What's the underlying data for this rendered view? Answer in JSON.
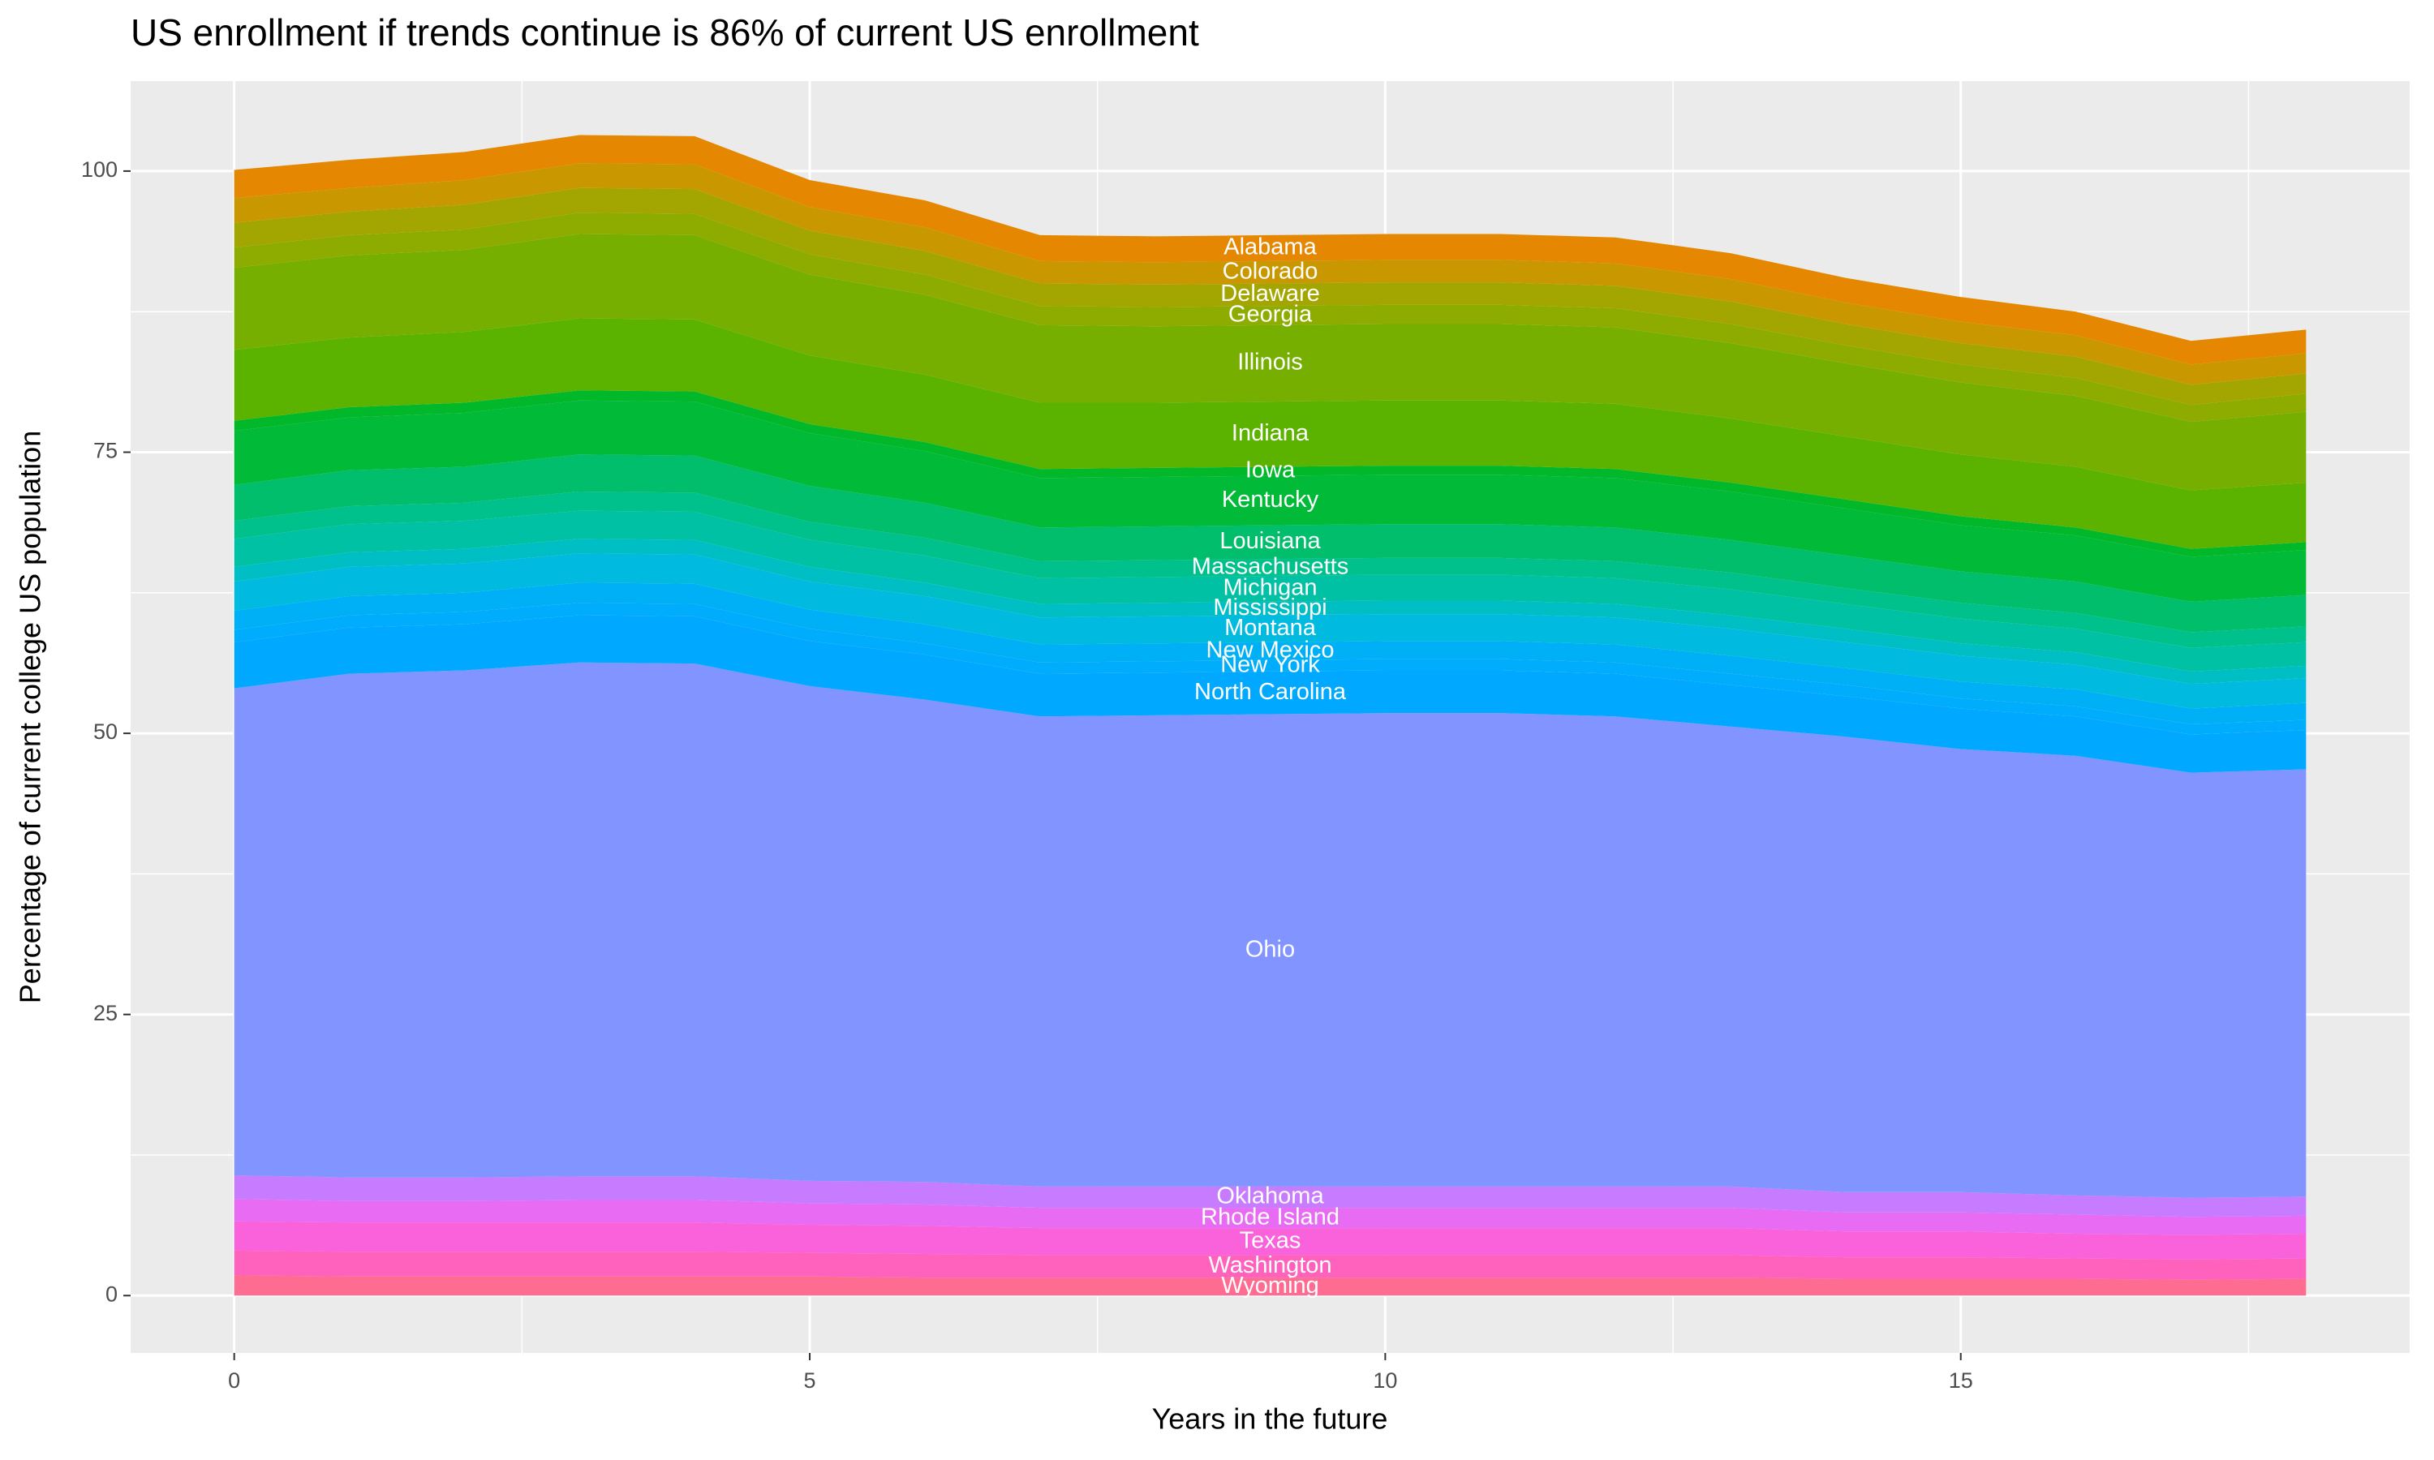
{
  "chart_data": {
    "type": "stacked_area",
    "title": "US enrollment if trends continue is 86% of current US enrollment",
    "x_label": "Years in the future",
    "y_label": "Percentage of current college US population",
    "x": [
      0,
      1,
      2,
      3,
      4,
      5,
      6,
      7,
      8,
      9,
      10,
      11,
      12,
      13,
      14,
      15,
      16,
      17,
      18
    ],
    "xlim": [
      -0.9,
      18.9
    ],
    "xticks": [
      0,
      5,
      10,
      15
    ],
    "minor_xticks": [
      2.5,
      7.5,
      12.5,
      17.5
    ],
    "ylim": [
      -5.1,
      108
    ],
    "yticks": [
      0,
      25,
      50,
      75,
      100
    ],
    "minor_yticks": [
      12.5,
      37.5,
      62.5,
      87.5
    ],
    "grid": true,
    "series": [
      {
        "name": "Alabama",
        "color": "#E58700",
        "values": [
          2.5,
          2.5,
          2.5,
          2.5,
          2.5,
          2.4,
          2.4,
          2.3,
          2.3,
          2.3,
          2.3,
          2.3,
          2.3,
          2.3,
          2.2,
          2.2,
          2.1,
          2.1,
          2.1
        ]
      },
      {
        "name": "Colorado",
        "color": "#C99800",
        "values": [
          2.2,
          2.1,
          2.2,
          2.2,
          2.2,
          2.1,
          2.1,
          2.0,
          2.0,
          2.0,
          2.0,
          2.0,
          2.0,
          2.0,
          1.9,
          1.9,
          1.9,
          1.8,
          1.8
        ]
      },
      {
        "name": "Delaware",
        "color": "#A3A500",
        "values": [
          2.2,
          2.1,
          2.2,
          2.2,
          2.2,
          2.1,
          2.1,
          2.0,
          2.0,
          2.0,
          2.0,
          2.0,
          2.0,
          2.0,
          1.9,
          1.9,
          1.9,
          1.8,
          1.8
        ]
      },
      {
        "name": "Georgia",
        "color": "#8EAB00",
        "values": [
          1.8,
          1.8,
          1.8,
          1.9,
          1.9,
          1.8,
          1.8,
          1.7,
          1.7,
          1.7,
          1.7,
          1.7,
          1.7,
          1.7,
          1.6,
          1.6,
          1.6,
          1.5,
          1.6
        ]
      },
      {
        "name": "Illinois",
        "color": "#76AF00",
        "values": [
          7.3,
          7.3,
          7.3,
          7.5,
          7.5,
          7.2,
          7.1,
          6.9,
          6.8,
          6.8,
          6.8,
          6.8,
          6.8,
          6.7,
          6.5,
          6.4,
          6.3,
          6.1,
          6.3
        ]
      },
      {
        "name": "Indiana",
        "color": "#5BB300",
        "values": [
          6.3,
          6.2,
          6.3,
          6.4,
          6.4,
          6.1,
          6.0,
          5.9,
          5.8,
          5.8,
          5.8,
          5.8,
          5.8,
          5.7,
          5.6,
          5.5,
          5.4,
          5.2,
          5.3
        ]
      },
      {
        "name": "Iowa",
        "color": "#00B82A",
        "values": [
          0.9,
          0.9,
          0.9,
          0.9,
          0.9,
          0.8,
          0.8,
          0.8,
          0.8,
          0.8,
          0.8,
          0.8,
          0.8,
          0.8,
          0.8,
          0.8,
          0.7,
          0.7,
          0.7
        ]
      },
      {
        "name": "Kentucky",
        "color": "#00BA38",
        "values": [
          4.8,
          4.7,
          4.8,
          4.8,
          4.8,
          4.7,
          4.6,
          4.4,
          4.4,
          4.4,
          4.4,
          4.4,
          4.4,
          4.3,
          4.2,
          4.1,
          4.1,
          4.0,
          4.0
        ]
      },
      {
        "name": "Louisiana",
        "color": "#00BE6C",
        "values": [
          3.2,
          3.2,
          3.2,
          3.3,
          3.3,
          3.2,
          3.1,
          3.0,
          3.0,
          3.0,
          3.0,
          3.0,
          3.0,
          2.9,
          2.9,
          2.8,
          2.8,
          2.7,
          2.8
        ]
      },
      {
        "name": "Massachusetts",
        "color": "#00C08B",
        "values": [
          1.6,
          1.6,
          1.6,
          1.7,
          1.7,
          1.6,
          1.6,
          1.5,
          1.5,
          1.5,
          1.5,
          1.5,
          1.5,
          1.5,
          1.4,
          1.4,
          1.4,
          1.4,
          1.4
        ]
      },
      {
        "name": "Michigan",
        "color": "#00C1A3",
        "values": [
          2.5,
          2.5,
          2.5,
          2.5,
          2.5,
          2.4,
          2.4,
          2.3,
          2.3,
          2.3,
          2.3,
          2.3,
          2.3,
          2.3,
          2.2,
          2.2,
          2.1,
          2.1,
          2.1
        ]
      },
      {
        "name": "Mississippi",
        "color": "#00BFC4",
        "values": [
          1.3,
          1.3,
          1.3,
          1.3,
          1.3,
          1.3,
          1.2,
          1.2,
          1.2,
          1.2,
          1.2,
          1.2,
          1.2,
          1.2,
          1.2,
          1.1,
          1.1,
          1.1,
          1.1
        ]
      },
      {
        "name": "Montana",
        "color": "#00BAE0",
        "values": [
          2.6,
          2.6,
          2.6,
          2.6,
          2.6,
          2.5,
          2.5,
          2.4,
          2.4,
          2.4,
          2.4,
          2.4,
          2.4,
          2.4,
          2.3,
          2.3,
          2.2,
          2.2,
          2.2
        ]
      },
      {
        "name": "New Mexico",
        "color": "#00B0F6",
        "values": [
          1.7,
          1.7,
          1.7,
          1.8,
          1.8,
          1.7,
          1.7,
          1.6,
          1.6,
          1.6,
          1.6,
          1.6,
          1.6,
          1.6,
          1.5,
          1.5,
          1.5,
          1.4,
          1.5
        ]
      },
      {
        "name": "New York",
        "color": "#00ACFC",
        "values": [
          1.1,
          1.1,
          1.1,
          1.1,
          1.1,
          1.1,
          1.0,
          1.0,
          1.0,
          1.0,
          1.0,
          1.0,
          1.0,
          1.0,
          1.0,
          0.9,
          0.9,
          0.9,
          0.9
        ]
      },
      {
        "name": "North Carolina",
        "color": "#00A9FF",
        "values": [
          4.1,
          4.1,
          4.1,
          4.2,
          4.2,
          4.0,
          4.0,
          3.8,
          3.8,
          3.8,
          3.8,
          3.8,
          3.8,
          3.7,
          3.6,
          3.6,
          3.5,
          3.4,
          3.5
        ]
      },
      {
        "name": "Ohio",
        "color": "#8294FF",
        "values": [
          43.3,
          44.8,
          45.1,
          45.7,
          45.6,
          44.0,
          42.9,
          41.8,
          41.9,
          42.0,
          42.1,
          42.1,
          41.8,
          40.9,
          40.5,
          39.4,
          39.1,
          37.8,
          38.0
        ]
      },
      {
        "name": "Oklahoma",
        "color": "#C77CFF",
        "values": [
          2.1,
          2.1,
          2.1,
          2.1,
          2.1,
          2.0,
          2.0,
          1.9,
          1.9,
          1.9,
          1.9,
          1.9,
          1.9,
          1.9,
          1.8,
          1.8,
          1.7,
          1.7,
          1.7
        ]
      },
      {
        "name": "Rhode Island",
        "color": "#E76BF3",
        "values": [
          2.0,
          1.9,
          1.9,
          2.0,
          2.0,
          1.9,
          1.9,
          1.8,
          1.8,
          1.8,
          1.8,
          1.8,
          1.8,
          1.8,
          1.7,
          1.7,
          1.7,
          1.6,
          1.6
        ]
      },
      {
        "name": "Texas",
        "color": "#FA62DB",
        "values": [
          2.6,
          2.6,
          2.6,
          2.6,
          2.6,
          2.5,
          2.5,
          2.4,
          2.4,
          2.4,
          2.4,
          2.4,
          2.4,
          2.4,
          2.3,
          2.3,
          2.2,
          2.2,
          2.2
        ]
      },
      {
        "name": "Washington",
        "color": "#FF62BC",
        "values": [
          2.2,
          2.2,
          2.2,
          2.2,
          2.2,
          2.1,
          2.1,
          2.0,
          2.0,
          2.0,
          2.0,
          2.0,
          2.0,
          2.0,
          1.9,
          1.9,
          1.8,
          1.8,
          1.8
        ]
      },
      {
        "name": "Wyoming",
        "color": "#FF6C91",
        "values": [
          1.8,
          1.7,
          1.7,
          1.7,
          1.7,
          1.7,
          1.6,
          1.6,
          1.6,
          1.6,
          1.6,
          1.6,
          1.6,
          1.6,
          1.5,
          1.5,
          1.5,
          1.4,
          1.5
        ]
      }
    ]
  }
}
